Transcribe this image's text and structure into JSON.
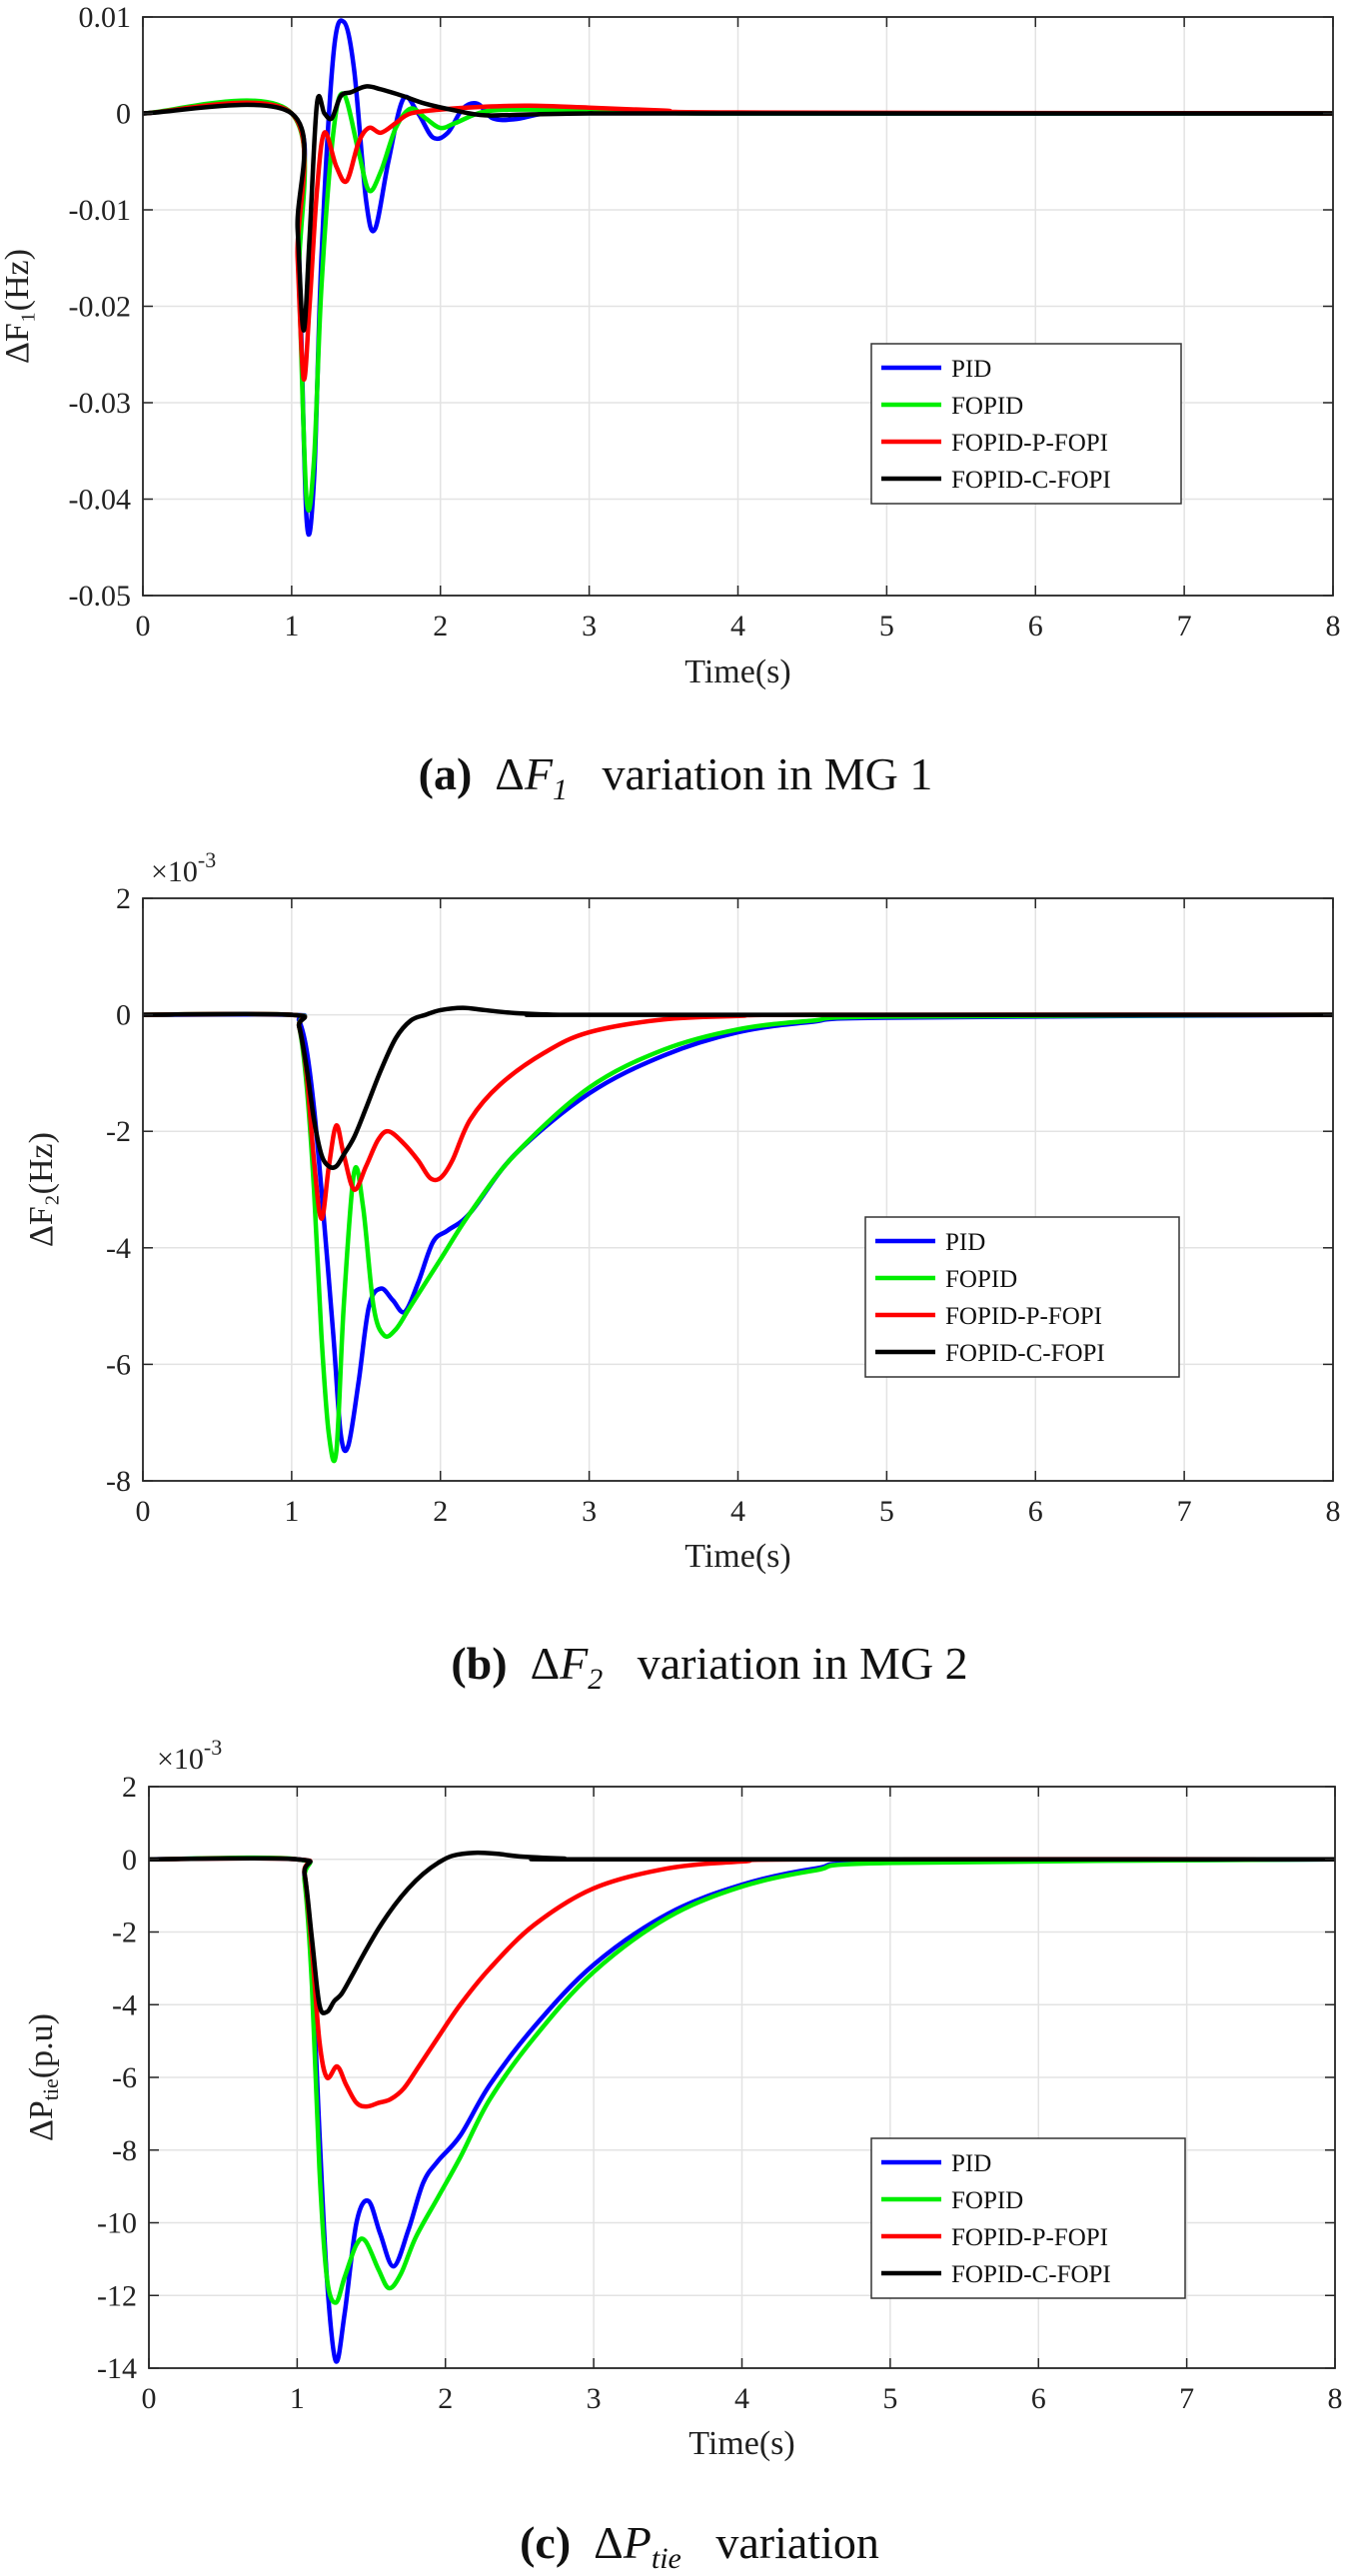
{
  "colors": {
    "PID": "#0000ff",
    "FOPID": "#00ee00",
    "FOPID-P-FOPI": "#ff0000",
    "FOPID-C-FOPI": "#000000",
    "grid": "#e3e3e3",
    "axis": "#262626"
  },
  "chart_data": [
    {
      "type": "line",
      "id": "a",
      "xlabel": "Time(s)",
      "ylabel": "ΔF₁(Hz)",
      "xlim": [
        0,
        8
      ],
      "ylim": [
        -0.05,
        0.01
      ],
      "xticks": [
        0,
        1,
        2,
        3,
        4,
        5,
        6,
        7,
        8
      ],
      "xtick_labels": [
        "0",
        "1",
        "2",
        "3",
        "4",
        "5",
        "6",
        "7",
        "8"
      ],
      "yticks": [
        0.01,
        0,
        -0.01,
        -0.02,
        -0.03,
        -0.04,
        -0.05
      ],
      "ytick_labels": [
        "0.01",
        "0",
        "-0.01",
        "-0.02",
        "-0.03",
        "-0.04",
        "-0.05"
      ],
      "exponent_label": "",
      "legend": [
        "PID",
        "FOPID",
        "FOPID-P-FOPI",
        "FOPID-C-FOPI"
      ],
      "legend_position": "center-right",
      "caption": {
        "letter": "(a)",
        "symbol": "ΔF",
        "sub": "1",
        "text": "variation in MG 1"
      },
      "series": [
        {
          "name": "PID",
          "x": [
            0,
            1.0,
            1.05,
            1.1,
            1.15,
            1.2,
            1.28,
            1.35,
            1.42,
            1.5,
            1.56,
            1.65,
            1.75,
            1.85,
            1.95,
            2.05,
            2.15,
            2.25,
            2.35,
            2.5,
            2.7,
            3.0,
            3.5,
            4.0,
            8.0
          ],
          "y": [
            0,
            0,
            -0.015,
            -0.042,
            -0.038,
            -0.015,
            0.006,
            0.0095,
            0.0045,
            -0.009,
            -0.012,
            -0.005,
            0.0015,
            0.0,
            -0.0025,
            -0.002,
            0.0005,
            0.001,
            -0.0005,
            -0.0006,
            0.0,
            0.0003,
            0.0002,
            0.0,
            0.0
          ]
        },
        {
          "name": "FOPID",
          "x": [
            0,
            1.0,
            1.05,
            1.1,
            1.15,
            1.2,
            1.28,
            1.35,
            1.45,
            1.52,
            1.6,
            1.7,
            1.8,
            1.9,
            2.0,
            2.1,
            2.3,
            2.6,
            3.0,
            3.5,
            4.0,
            8.0
          ],
          "y": [
            0,
            0,
            -0.018,
            -0.04,
            -0.036,
            -0.018,
            -0.002,
            0.002,
            -0.004,
            -0.008,
            -0.006,
            -0.0015,
            0.0005,
            -0.0005,
            -0.0015,
            -0.001,
            0.0002,
            0.0004,
            0.0002,
            0.0001,
            0.0,
            0.0
          ]
        },
        {
          "name": "FOPID-P-FOPI",
          "x": [
            0,
            1.0,
            1.04,
            1.08,
            1.12,
            1.17,
            1.22,
            1.3,
            1.37,
            1.45,
            1.52,
            1.6,
            1.7,
            1.8,
            2.0,
            2.3,
            2.6,
            3.0,
            3.5,
            4.0,
            8.0
          ],
          "y": [
            0,
            0,
            -0.015,
            -0.0275,
            -0.02,
            -0.008,
            -0.002,
            -0.0055,
            -0.007,
            -0.003,
            -0.0015,
            -0.002,
            -0.001,
            0.0,
            0.0004,
            0.0007,
            0.0008,
            0.0006,
            0.0003,
            0.0001,
            0.0
          ]
        },
        {
          "name": "FOPID-C-FOPI",
          "x": [
            0,
            1.0,
            1.04,
            1.08,
            1.12,
            1.17,
            1.22,
            1.27,
            1.33,
            1.4,
            1.5,
            1.6,
            1.75,
            1.9,
            2.1,
            2.3,
            2.6,
            3.0,
            3.5,
            8.0
          ],
          "y": [
            0,
            0,
            -0.012,
            -0.0225,
            -0.013,
            0.001,
            0.0,
            -0.0005,
            0.0018,
            0.0022,
            0.0028,
            0.0025,
            0.0018,
            0.001,
            0.0003,
            -0.0002,
            -0.0001,
            0.0,
            0.0,
            0.0
          ]
        }
      ]
    },
    {
      "type": "line",
      "id": "b",
      "xlabel": "Time(s)",
      "ylabel": "ΔF₂(Hz)",
      "xlim": [
        0,
        8
      ],
      "ylim": [
        -8,
        2
      ],
      "xticks": [
        0,
        1,
        2,
        3,
        4,
        5,
        6,
        7,
        8
      ],
      "xtick_labels": [
        "0",
        "1",
        "2",
        "3",
        "4",
        "5",
        "6",
        "7",
        "8"
      ],
      "yticks": [
        2,
        0,
        -2,
        -4,
        -6,
        -8
      ],
      "ytick_labels": [
        "2",
        "0",
        "-2",
        "-4",
        "-6",
        "-8"
      ],
      "exponent_label": "×10",
      "exponent_power": "-3",
      "legend": [
        "PID",
        "FOPID",
        "FOPID-P-FOPI",
        "FOPID-C-FOPI"
      ],
      "legend_position": "center-right",
      "caption": {
        "letter": "(b)",
        "symbol": "ΔF",
        "sub": "2",
        "text": "variation in MG 2"
      },
      "series": [
        {
          "name": "PID",
          "x": [
            0,
            1.0,
            1.05,
            1.1,
            1.15,
            1.2,
            1.28,
            1.33,
            1.38,
            1.45,
            1.52,
            1.6,
            1.68,
            1.76,
            1.85,
            1.95,
            2.05,
            2.2,
            2.5,
            3.0,
            3.5,
            4.0,
            4.5,
            5.0,
            8.0
          ],
          "y": [
            0,
            0,
            -0.1,
            -0.6,
            -1.6,
            -3.0,
            -5.5,
            -7.2,
            -7.4,
            -6.3,
            -5.0,
            -4.7,
            -4.9,
            -5.1,
            -4.6,
            -3.9,
            -3.7,
            -3.4,
            -2.4,
            -1.35,
            -0.7,
            -0.3,
            -0.12,
            -0.05,
            0.0
          ]
        },
        {
          "name": "FOPID",
          "x": [
            0,
            1.0,
            1.05,
            1.1,
            1.15,
            1.2,
            1.25,
            1.3,
            1.35,
            1.42,
            1.48,
            1.55,
            1.62,
            1.7,
            1.8,
            2.0,
            2.2,
            2.5,
            3.0,
            3.5,
            4.0,
            4.5,
            5.0,
            8.0
          ],
          "y": [
            0,
            0,
            -0.2,
            -1.2,
            -3.0,
            -5.5,
            -7.2,
            -7.5,
            -5.0,
            -2.7,
            -3.3,
            -5.0,
            -5.5,
            -5.4,
            -5.0,
            -4.2,
            -3.4,
            -2.4,
            -1.25,
            -0.6,
            -0.25,
            -0.1,
            -0.03,
            0.0
          ]
        },
        {
          "name": "FOPID-P-FOPI",
          "x": [
            0,
            1.0,
            1.05,
            1.1,
            1.15,
            1.2,
            1.25,
            1.3,
            1.35,
            1.42,
            1.5,
            1.58,
            1.65,
            1.75,
            1.85,
            1.93,
            2.0,
            2.08,
            2.2,
            2.4,
            2.7,
            3.0,
            3.5,
            4.0,
            4.5,
            8.0
          ],
          "y": [
            0,
            0,
            -0.2,
            -1.0,
            -2.5,
            -3.5,
            -2.6,
            -1.9,
            -2.4,
            -3.0,
            -2.6,
            -2.15,
            -2.0,
            -2.2,
            -2.5,
            -2.8,
            -2.8,
            -2.5,
            -1.8,
            -1.2,
            -0.65,
            -0.3,
            -0.08,
            -0.02,
            0.0,
            0.0
          ]
        },
        {
          "name": "FOPID-C-FOPI",
          "x": [
            0,
            1.0,
            1.05,
            1.1,
            1.15,
            1.2,
            1.25,
            1.3,
            1.35,
            1.42,
            1.5,
            1.6,
            1.7,
            1.8,
            1.9,
            2.0,
            2.15,
            2.3,
            2.5,
            2.8,
            3.0,
            8.0
          ],
          "y": [
            0,
            0,
            -0.2,
            -0.9,
            -1.8,
            -2.4,
            -2.6,
            -2.6,
            -2.4,
            -2.1,
            -1.6,
            -0.95,
            -0.4,
            -0.1,
            0.0,
            0.08,
            0.12,
            0.08,
            0.03,
            0.0,
            0.0,
            0.0
          ]
        }
      ]
    },
    {
      "type": "line",
      "id": "c",
      "xlabel": "Time(s)",
      "ylabel": "ΔP_tie(p.u)",
      "xlim": [
        0,
        8
      ],
      "ylim": [
        -14,
        2
      ],
      "xticks": [
        0,
        1,
        2,
        3,
        4,
        5,
        6,
        7,
        8
      ],
      "xtick_labels": [
        "0",
        "1",
        "2",
        "3",
        "4",
        "5",
        "6",
        "7",
        "8"
      ],
      "yticks": [
        2,
        0,
        -2,
        -4,
        -6,
        -8,
        -10,
        -12,
        -14
      ],
      "ytick_labels": [
        "2",
        "0",
        "-2",
        "-4",
        "-6",
        "-8",
        "-10",
        "-12",
        "-14"
      ],
      "exponent_label": "×10",
      "exponent_power": "-3",
      "legend": [
        "PID",
        "FOPID",
        "FOPID-P-FOPI",
        "FOPID-C-FOPI"
      ],
      "legend_position": "lower-right",
      "caption": {
        "letter": "(c)",
        "symbol": "ΔP",
        "sub": "tie",
        "text": "variation"
      },
      "series": [
        {
          "name": "PID",
          "x": [
            0,
            1.0,
            1.05,
            1.1,
            1.15,
            1.2,
            1.26,
            1.32,
            1.4,
            1.48,
            1.56,
            1.65,
            1.75,
            1.85,
            1.95,
            2.1,
            2.3,
            2.6,
            3.0,
            3.5,
            4.0,
            4.5,
            5.0,
            8.0
          ],
          "y": [
            0,
            0,
            -0.5,
            -3.0,
            -7.5,
            -11.5,
            -13.8,
            -12.5,
            -10.0,
            -9.4,
            -10.3,
            -11.2,
            -10.2,
            -8.9,
            -8.3,
            -7.6,
            -6.2,
            -4.6,
            -2.9,
            -1.5,
            -0.7,
            -0.25,
            -0.08,
            0.0
          ]
        },
        {
          "name": "FOPID",
          "x": [
            0,
            1.0,
            1.05,
            1.1,
            1.15,
            1.2,
            1.26,
            1.32,
            1.4,
            1.46,
            1.55,
            1.62,
            1.7,
            1.8,
            1.95,
            2.1,
            2.3,
            2.6,
            3.0,
            3.5,
            4.0,
            4.5,
            5.0,
            8.0
          ],
          "y": [
            0,
            0,
            -0.6,
            -3.5,
            -8.5,
            -11.5,
            -12.2,
            -11.5,
            -10.6,
            -10.5,
            -11.3,
            -11.8,
            -11.4,
            -10.4,
            -9.3,
            -8.2,
            -6.6,
            -4.9,
            -3.1,
            -1.6,
            -0.75,
            -0.3,
            -0.1,
            0.0
          ]
        },
        {
          "name": "FOPID-P-FOPI",
          "x": [
            0,
            1.0,
            1.05,
            1.1,
            1.15,
            1.2,
            1.27,
            1.33,
            1.4,
            1.47,
            1.55,
            1.63,
            1.72,
            1.82,
            1.95,
            2.1,
            2.3,
            2.6,
            3.0,
            3.5,
            4.0,
            4.5,
            8.0
          ],
          "y": [
            0,
            0,
            -0.4,
            -2.5,
            -5.0,
            -6.0,
            -5.7,
            -6.2,
            -6.7,
            -6.8,
            -6.7,
            -6.6,
            -6.3,
            -5.7,
            -4.9,
            -4.0,
            -3.0,
            -1.8,
            -0.8,
            -0.25,
            -0.06,
            0.0,
            0.0
          ]
        },
        {
          "name": "FOPID-C-FOPI",
          "x": [
            0,
            1.0,
            1.05,
            1.1,
            1.15,
            1.2,
            1.25,
            1.3,
            1.37,
            1.45,
            1.55,
            1.65,
            1.75,
            1.85,
            1.95,
            2.05,
            2.2,
            2.35,
            2.5,
            2.8,
            3.0,
            8.0
          ],
          "y": [
            0,
            0,
            -0.4,
            -2.2,
            -4.0,
            -4.2,
            -3.9,
            -3.7,
            -3.2,
            -2.6,
            -1.9,
            -1.3,
            -0.8,
            -0.4,
            -0.1,
            0.1,
            0.18,
            0.15,
            0.08,
            0.02,
            0.0,
            0.0
          ]
        }
      ]
    }
  ]
}
